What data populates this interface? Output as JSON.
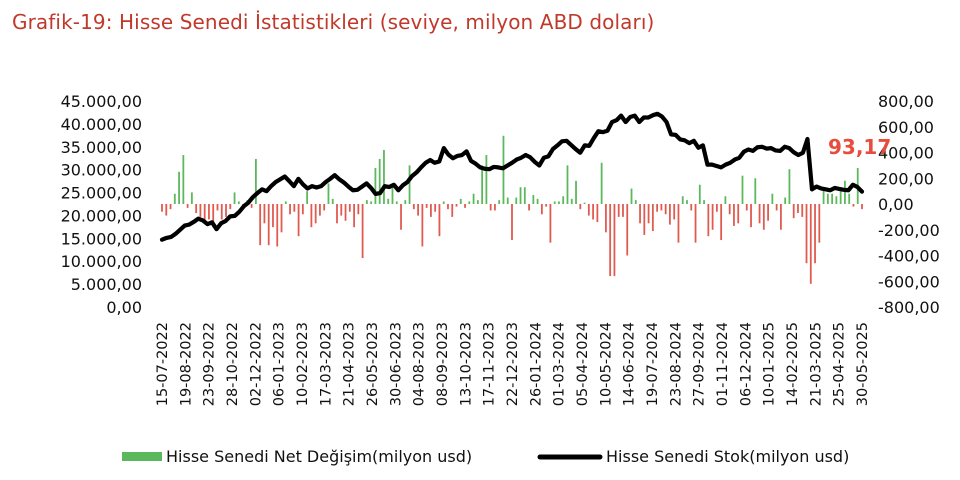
{
  "title": "Grafik-19: Hisse Senedi İstatistikleri (seviye, milyon ABD doları)",
  "chart_data": {
    "type": "bar+line",
    "title": "Grafik-19: Hisse Senedi İstatistikleri (seviye, milyon ABD doları)",
    "colors": {
      "positive_bar": "#5cb85c",
      "negative_bar": "#e05a4f",
      "line": "#000000",
      "title": "#c0392b",
      "annotation": "#e74c3c"
    },
    "left_axis": {
      "ticks": [
        "45.000,00",
        "40.000,00",
        "35.000,00",
        "30.000,00",
        "25.000,00",
        "20.000,00",
        "15.000,00",
        "10.000,00",
        "5.000,00",
        "0,00"
      ],
      "ylim": [
        0,
        45000
      ]
    },
    "right_axis": {
      "ticks": [
        "800,00",
        "600,00",
        "400,00",
        "200,00",
        "0,00",
        "-200,00",
        "-400,00",
        "-600,00",
        "-800,00"
      ],
      "ylim": [
        -800,
        800
      ]
    },
    "x_tick_labels": [
      "15-07-2022",
      "19-08-2022",
      "23-09-2022",
      "28-10-2022",
      "02-12-2022",
      "06-01-2023",
      "10-02-2023",
      "17-03-2023",
      "21-04-2023",
      "26-05-2023",
      "30-06-2023",
      "04-08-2023",
      "08-09-2023",
      "13-10-2023",
      "17-11-2023",
      "22-12-2023",
      "26-01-2024",
      "01-03-2024",
      "05-04-2024",
      "10-05-2024",
      "14-06-2024",
      "19-07-2024",
      "23-08-2024",
      "27-09-2024",
      "01-11-2024",
      "06-12-2024",
      "10-01-2025",
      "14-02-2025",
      "21-03-2025",
      "25-04-2025",
      "30-05-2025"
    ],
    "series": [
      {
        "name": "Hisse Senedi Net Değişim(milyon usd)",
        "type": "bar",
        "axis": "right",
        "values": [
          -60,
          -90,
          -40,
          80,
          250,
          380,
          -30,
          90,
          -70,
          -100,
          -150,
          -120,
          -180,
          -50,
          -120,
          -100,
          -40,
          90,
          20,
          -10,
          30,
          -30,
          350,
          -320,
          -150,
          -320,
          -180,
          -330,
          -220,
          20,
          -80,
          -60,
          -250,
          -80,
          100,
          -180,
          -150,
          -90,
          -50,
          160,
          40,
          -150,
          -90,
          -130,
          -60,
          -180,
          -80,
          -420,
          30,
          20,
          280,
          350,
          420,
          40,
          130,
          20,
          -200,
          30,
          300,
          -40,
          -90,
          -330,
          -30,
          -100,
          -60,
          -250,
          20,
          -40,
          -100,
          -20,
          40,
          -30,
          20,
          80,
          30,
          300,
          380,
          -50,
          -50,
          30,
          530,
          50,
          -280,
          50,
          130,
          130,
          -50,
          70,
          40,
          -80,
          -20,
          -300,
          20,
          20,
          60,
          300,
          40,
          180,
          -40,
          10,
          -90,
          -120,
          -140,
          320,
          -220,
          -560,
          -560,
          -100,
          -100,
          -400,
          120,
          30,
          -150,
          -240,
          -150,
          -210,
          -60,
          -50,
          -80,
          -160,
          -120,
          -300,
          60,
          30,
          -50,
          -300,
          150,
          30,
          -250,
          -200,
          -60,
          -280,
          60,
          -80,
          -170,
          -150,
          220,
          -50,
          -180,
          200,
          -150,
          -200,
          -130,
          80,
          -50,
          -200,
          50,
          270,
          -110,
          -70,
          -100,
          -460,
          -620,
          -460,
          -300,
          120,
          80,
          80,
          60,
          100,
          180,
          80,
          -20,
          280,
          -40
        ],
        "labels": [
          "93,17"
        ]
      },
      {
        "name": "Hisse Senedi Stok(milyon usd)",
        "type": "line",
        "axis": "left",
        "values": [
          14700,
          15100,
          15300,
          16000,
          16900,
          17800,
          18000,
          18600,
          19300,
          18900,
          18100,
          18500,
          17000,
          18300,
          18800,
          19800,
          19900,
          20800,
          22000,
          22800,
          24000,
          24900,
          25700,
          25300,
          26400,
          27300,
          27900,
          28500,
          27500,
          26400,
          28000,
          26800,
          25900,
          26400,
          26100,
          26400,
          27300,
          28000,
          28800,
          27900,
          27200,
          26300,
          25500,
          25600,
          26300,
          27000,
          26000,
          24700,
          24900,
          26400,
          26200,
          26700,
          25500,
          26600,
          27300,
          28600,
          29400,
          30500,
          31500,
          32100,
          31500,
          31800,
          34700,
          33300,
          32500,
          33000,
          33200,
          34000,
          31900,
          31300,
          30500,
          30200,
          30100,
          30600,
          30500,
          30300,
          30900,
          31500,
          32200,
          32600,
          33200,
          32700,
          31700,
          30900,
          32600,
          32900,
          34500,
          35300,
          36200,
          36300,
          35400,
          34500,
          33700,
          35300,
          35200,
          36900,
          38400,
          38200,
          38500,
          40400,
          40800,
          41800,
          40400,
          41500,
          41800,
          40400,
          41400,
          41400,
          41900,
          42200,
          41600,
          40400,
          37700,
          37600,
          36600,
          36400,
          35800,
          36300,
          34800,
          35300,
          31100,
          31100,
          30800,
          30500,
          31100,
          31500,
          32200,
          32600,
          33900,
          34400,
          34100,
          34900,
          35000,
          34600,
          34700,
          34200,
          34100,
          35000,
          34700,
          33800,
          33200,
          33700,
          36700,
          25700,
          26300,
          25900,
          25700,
          25500,
          26000,
          25800,
          25600,
          25500,
          26700,
          26200,
          25200
        ]
      }
    ],
    "legend": {
      "bar_label": "Hisse Senedi Net Değişim(milyon usd)",
      "line_label": "Hisse Senedi Stok(milyon usd)",
      "placement": "bottom"
    },
    "annotation": "93,17"
  }
}
